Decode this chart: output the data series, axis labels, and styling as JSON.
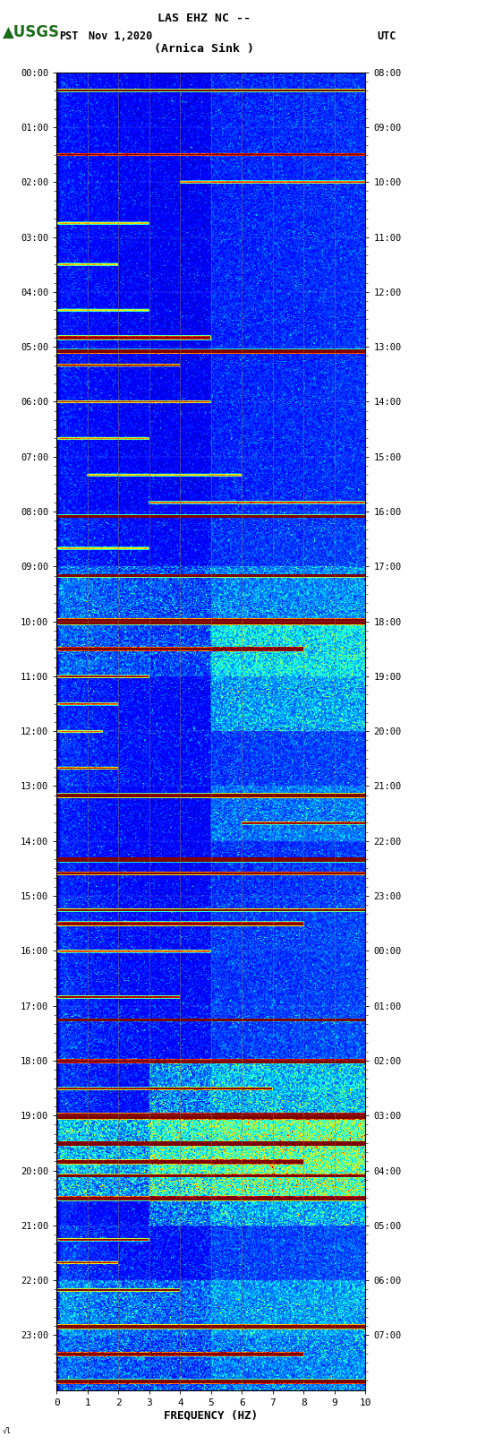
{
  "title_line1": "LAS EHZ NC --",
  "title_line2": "(Arnica Sink )",
  "date_label": "Nov 1,2020",
  "left_timezone": "PST",
  "right_timezone": "UTC",
  "left_yticks": [
    "00:00",
    "01:00",
    "02:00",
    "03:00",
    "04:00",
    "05:00",
    "06:00",
    "07:00",
    "08:00",
    "09:00",
    "10:00",
    "11:00",
    "12:00",
    "13:00",
    "14:00",
    "15:00",
    "16:00",
    "17:00",
    "18:00",
    "19:00",
    "20:00",
    "21:00",
    "22:00",
    "23:00"
  ],
  "right_yticks": [
    "08:00",
    "09:00",
    "10:00",
    "11:00",
    "12:00",
    "13:00",
    "14:00",
    "15:00",
    "16:00",
    "17:00",
    "18:00",
    "19:00",
    "20:00",
    "21:00",
    "22:00",
    "23:00",
    "00:00",
    "01:00",
    "02:00",
    "03:00",
    "04:00",
    "05:00",
    "06:00",
    "07:00"
  ],
  "xlabel": "FREQUENCY (HZ)",
  "xmin": 0,
  "xmax": 10,
  "xticks": [
    0,
    1,
    2,
    3,
    4,
    5,
    6,
    7,
    8,
    9,
    10
  ],
  "fig_width": 5.52,
  "fig_height": 16.13,
  "dpi": 100,
  "colormap": "jet"
}
